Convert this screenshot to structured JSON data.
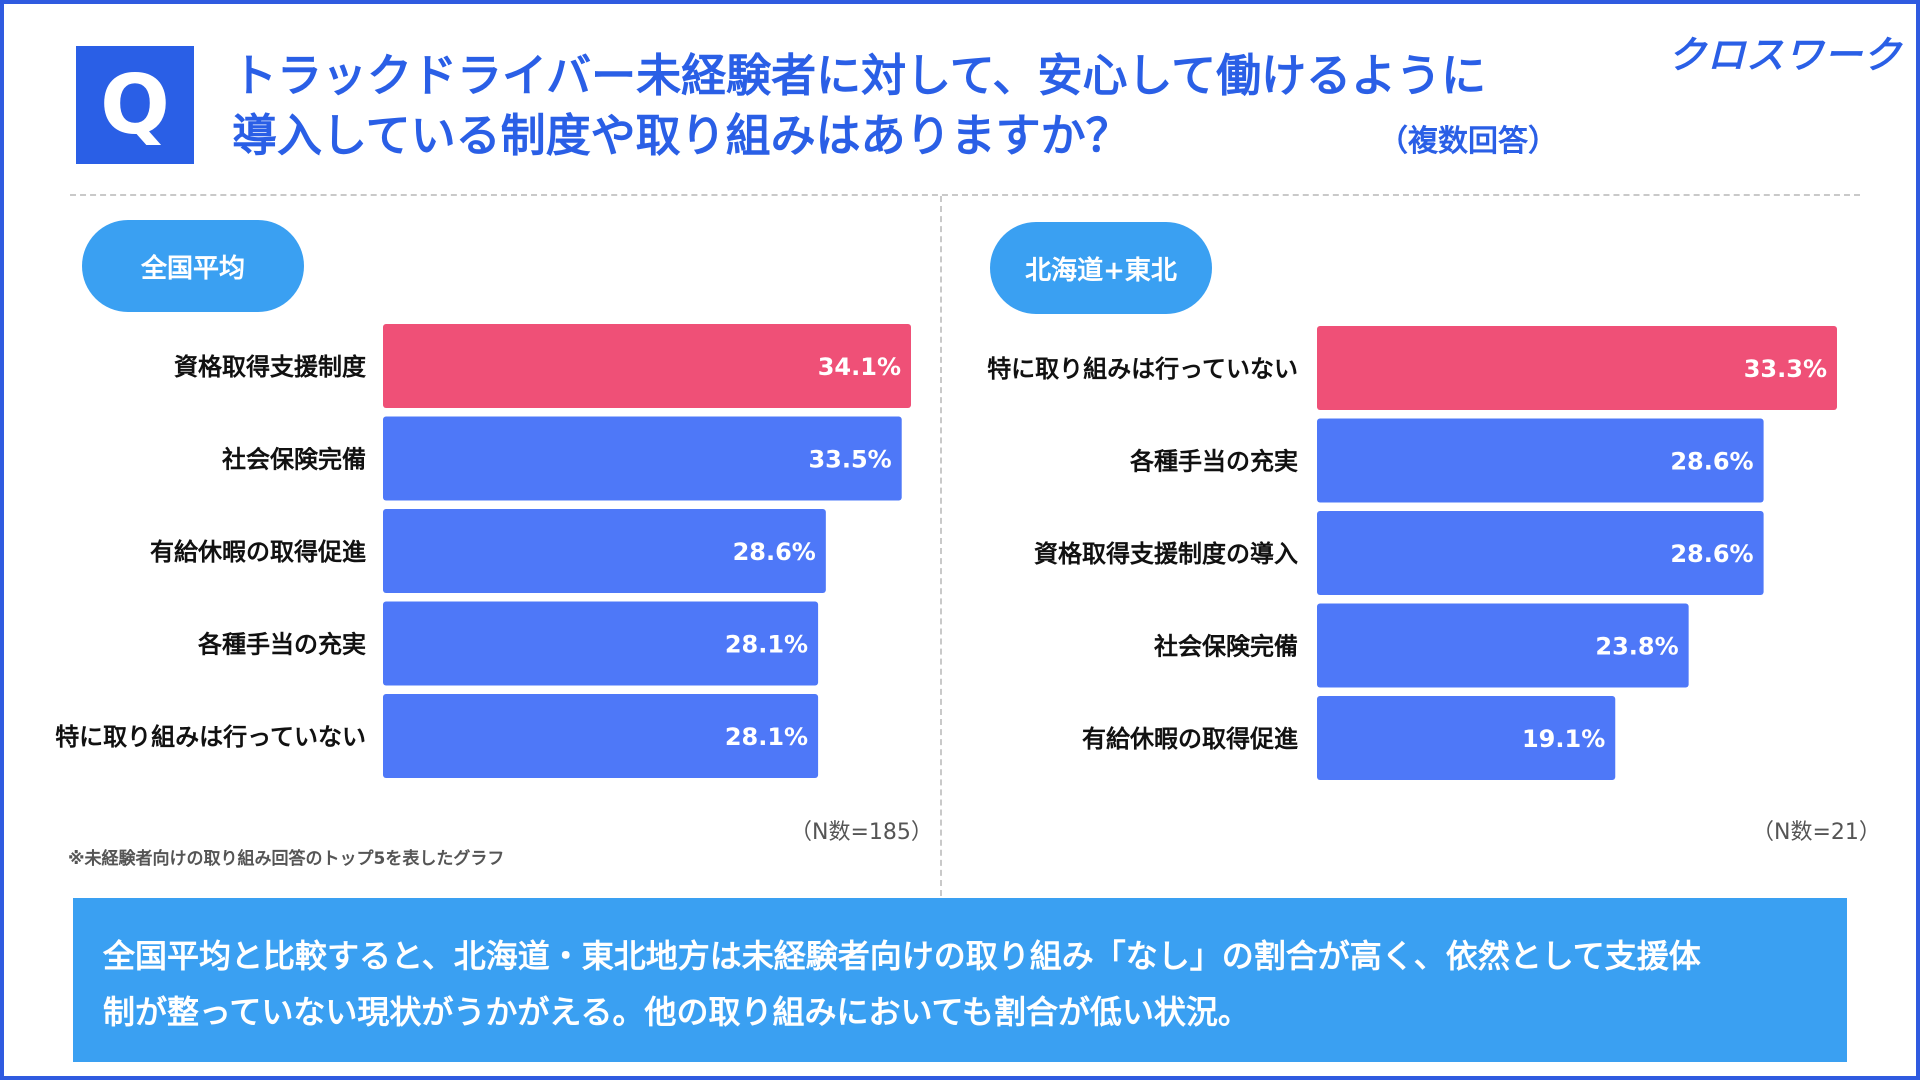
{
  "header": {
    "q_mark": "Q",
    "title_line1": "トラックドライバー未経験者に対して、安心して働けるように",
    "title_line2": "導入している制度や取り組みはありますか？",
    "multi_answer": "（複数回答）",
    "logo": "クロスワーク"
  },
  "colors": {
    "brand_blue": "#2a5fe6",
    "bar_blue": "#4e78f8",
    "bar_highlight": "#ef5077",
    "pill_blue": "#3aa0f2"
  },
  "chart_data": [
    {
      "type": "bar",
      "orientation": "horizontal",
      "title": "全国平均",
      "categories": [
        "資格取得支援制度",
        "社会保険完備",
        "有給休暇の取得促進",
        "各種手当の充実",
        "特に取り組みは行っていない"
      ],
      "values": [
        34.1,
        33.5,
        28.6,
        28.1,
        28.1
      ],
      "value_labels": [
        "34.1%",
        "33.5%",
        "28.6%",
        "28.1%",
        "28.1%"
      ],
      "highlight_index": 0,
      "unit": "%",
      "xlim": [
        0,
        34.1
      ],
      "n_note": "（N数=185）"
    },
    {
      "type": "bar",
      "orientation": "horizontal",
      "title": "北海道+東北",
      "categories": [
        "特に取り組みは行っていない",
        "各種手当の充実",
        "資格取得支援制度の導入",
        "社会保険完備",
        "有給休暇の取得促進"
      ],
      "values": [
        33.3,
        28.6,
        28.6,
        23.8,
        19.1
      ],
      "value_labels": [
        "33.3%",
        "28.6%",
        "28.6%",
        "23.8%",
        "19.1%"
      ],
      "highlight_index": 0,
      "unit": "%",
      "xlim": [
        0,
        33.3
      ],
      "n_note": "（N数=21）"
    }
  ],
  "footnote": "※未経験者向けの取り組み回答のトップ5を表したグラフ",
  "summary": {
    "line1": "全国平均と比較すると、北海道・東北地方は未経験者向けの取り組み「なし」の割合が高く、依然として支援体",
    "line2": "制が整っていない現状がうかがえる。他の取り組みにおいても割合が低い状況。"
  }
}
